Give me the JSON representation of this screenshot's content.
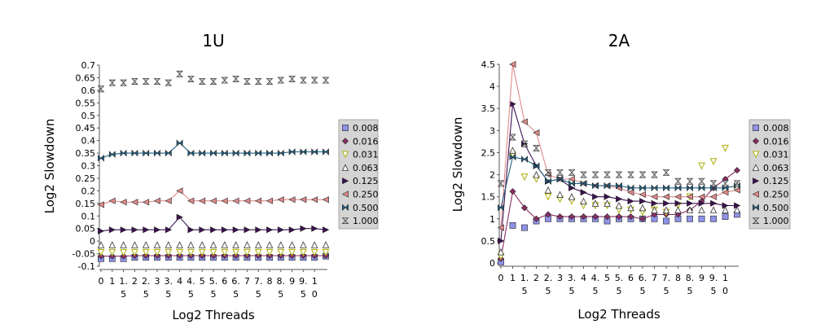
{
  "chart_data": [
    {
      "type": "line",
      "title": "1U",
      "xlabel": "Log2 Threads",
      "ylabel": "Log2 Slowdown",
      "ylim": [
        -0.1,
        0.7
      ],
      "yticks": [
        "-0.1",
        "-0.05",
        "0",
        "0.05",
        "0.1",
        "0.15",
        "0.2",
        "0.25",
        "0.3",
        "0.35",
        "0.4",
        "0.45",
        "0.5",
        "0.55",
        "0.6",
        "0.65",
        "0.7"
      ],
      "xticks": [
        [
          "0"
        ],
        [
          "1"
        ],
        [
          "1.",
          "5"
        ],
        [
          "2"
        ],
        [
          "2.",
          "5"
        ],
        [
          "3"
        ],
        [
          "3.",
          "5"
        ],
        [
          "4"
        ],
        [
          "4.",
          "5"
        ],
        [
          "5"
        ],
        [
          "5.",
          "5"
        ],
        [
          "6"
        ],
        [
          "6.",
          "5"
        ],
        [
          "7"
        ],
        [
          "7.",
          "5"
        ],
        [
          "8"
        ],
        [
          "8.",
          "5"
        ],
        [
          "9"
        ],
        [
          "9.",
          "5"
        ],
        [
          "1",
          "0"
        ]
      ],
      "x": [
        0,
        0.5,
        1,
        1.5,
        2,
        2.5,
        3,
        3.5,
        4,
        4.5,
        5,
        5.5,
        6,
        6.5,
        7,
        7.5,
        8,
        8.5,
        9,
        9.5,
        10
      ],
      "legend_position": "right",
      "series": [
        {
          "name": "0.008",
          "marker": "square",
          "color": "#8f93e8",
          "line": false,
          "values": [
            -0.07,
            -0.07,
            -0.07,
            -0.065,
            -0.065,
            -0.065,
            -0.065,
            -0.065,
            -0.065,
            -0.065,
            -0.065,
            -0.065,
            -0.065,
            -0.065,
            -0.065,
            -0.065,
            -0.065,
            -0.065,
            -0.065,
            -0.065,
            -0.06
          ]
        },
        {
          "name": "0.016",
          "marker": "diamond",
          "color": "#8a2f66",
          "line": true,
          "values": [
            -0.06,
            -0.06,
            -0.06,
            -0.058,
            -0.058,
            -0.058,
            -0.058,
            -0.058,
            -0.058,
            -0.058,
            -0.058,
            -0.058,
            -0.058,
            -0.058,
            -0.058,
            -0.058,
            -0.058,
            -0.058,
            -0.058,
            -0.058,
            -0.058
          ]
        },
        {
          "name": "0.031",
          "marker": "triangle-down",
          "color": "#b5b41a",
          "line": false,
          "values": [
            -0.045,
            -0.045,
            -0.045,
            -0.045,
            -0.045,
            -0.045,
            -0.045,
            -0.045,
            -0.045,
            -0.045,
            -0.045,
            -0.045,
            -0.045,
            -0.045,
            -0.045,
            -0.045,
            -0.045,
            -0.045,
            -0.045,
            -0.045,
            -0.045
          ]
        },
        {
          "name": "0.063",
          "marker": "triangle-up",
          "color": "#6fb89a",
          "line": false,
          "values": [
            -0.015,
            -0.015,
            -0.015,
            -0.015,
            -0.015,
            -0.015,
            -0.015,
            -0.015,
            -0.015,
            -0.015,
            -0.015,
            -0.015,
            -0.015,
            -0.015,
            -0.015,
            -0.015,
            -0.015,
            -0.015,
            -0.015,
            -0.015,
            -0.015
          ]
        },
        {
          "name": "0.125",
          "marker": "triangle-right",
          "color": "#3c1150",
          "line": true,
          "values": [
            0.04,
            0.045,
            0.045,
            0.045,
            0.045,
            0.045,
            0.045,
            0.095,
            0.045,
            0.045,
            0.045,
            0.045,
            0.045,
            0.045,
            0.045,
            0.045,
            0.045,
            0.045,
            0.05,
            0.05,
            0.045
          ]
        },
        {
          "name": "0.250",
          "marker": "triangle-left",
          "color": "#e08a8a",
          "line": true,
          "values": [
            0.145,
            0.16,
            0.155,
            0.155,
            0.155,
            0.16,
            0.16,
            0.2,
            0.16,
            0.16,
            0.16,
            0.16,
            0.16,
            0.16,
            0.16,
            0.16,
            0.165,
            0.165,
            0.165,
            0.165,
            0.165
          ]
        },
        {
          "name": "0.500",
          "marker": "bowtie",
          "color": "#1f5f82",
          "line": true,
          "values": [
            0.33,
            0.345,
            0.35,
            0.35,
            0.35,
            0.35,
            0.35,
            0.39,
            0.35,
            0.35,
            0.35,
            0.35,
            0.35,
            0.35,
            0.35,
            0.35,
            0.35,
            0.355,
            0.355,
            0.355,
            0.355
          ]
        },
        {
          "name": "1.000",
          "marker": "hourglass",
          "color": "#666666",
          "line": false,
          "values": [
            0.605,
            0.63,
            0.63,
            0.635,
            0.635,
            0.635,
            0.63,
            0.665,
            0.645,
            0.635,
            0.635,
            0.64,
            0.645,
            0.635,
            0.635,
            0.635,
            0.64,
            0.645,
            0.64,
            0.64,
            0.64
          ]
        }
      ]
    },
    {
      "type": "line",
      "title": "2A",
      "xlabel": "Log2 Threads",
      "ylabel": "Log2 Slowdown",
      "ylim": [
        0,
        4.5
      ],
      "yticks": [
        "0",
        "0.5",
        "1",
        "1.5",
        "2",
        "2.5",
        "3",
        "3.5",
        "4",
        "4.5"
      ],
      "xticks": [
        [
          "0"
        ],
        [
          "1"
        ],
        [
          "1.",
          "5"
        ],
        [
          "2"
        ],
        [
          "2.",
          "5"
        ],
        [
          "3"
        ],
        [
          "3.",
          "5"
        ],
        [
          "4"
        ],
        [
          "4.",
          "5"
        ],
        [
          "5"
        ],
        [
          "5.",
          "5"
        ],
        [
          "6"
        ],
        [
          "6.",
          "5"
        ],
        [
          "7"
        ],
        [
          "7.",
          "5"
        ],
        [
          "8"
        ],
        [
          "8.",
          "5"
        ],
        [
          "9"
        ],
        [
          "9.",
          "5"
        ],
        [
          "1",
          "0"
        ]
      ],
      "x": [
        0,
        0.5,
        1,
        1.5,
        2,
        2.5,
        3,
        3.5,
        4,
        4.5,
        5,
        5.5,
        6,
        6.5,
        7,
        7.5,
        8,
        8.5,
        9,
        9.5,
        10
      ],
      "legend_position": "right",
      "series": [
        {
          "name": "0.008",
          "marker": "square",
          "color": "#8f93e8",
          "line": false,
          "values": [
            0.02,
            0.85,
            0.8,
            0.95,
            1.0,
            1.0,
            1.0,
            1.0,
            1.0,
            0.95,
            1.0,
            1.0,
            1.0,
            1.0,
            0.95,
            1.0,
            1.0,
            1.0,
            1.0,
            1.05,
            1.1
          ]
        },
        {
          "name": "0.016",
          "marker": "diamond",
          "color": "#8a2f66",
          "line": true,
          "values": [
            0.1,
            1.62,
            1.25,
            1.0,
            1.1,
            1.05,
            1.05,
            1.05,
            1.05,
            1.05,
            1.05,
            1.05,
            1.0,
            1.1,
            1.1,
            1.1,
            1.2,
            1.4,
            1.7,
            1.9,
            2.1
          ]
        },
        {
          "name": "0.031",
          "marker": "triangle-down",
          "color": "#b5b41a",
          "line": false,
          "values": [
            0.15,
            2.45,
            1.95,
            1.9,
            1.5,
            1.45,
            1.4,
            1.3,
            1.3,
            1.3,
            1.2,
            1.2,
            1.15,
            1.2,
            1.15,
            1.3,
            1.5,
            2.2,
            2.3,
            2.6,
            1.7
          ]
        },
        {
          "name": "0.063",
          "marker": "triangle-up",
          "color": "#6fb89a",
          "line": false,
          "values": [
            0.25,
            2.55,
            2.7,
            2.0,
            1.65,
            1.55,
            1.5,
            1.4,
            1.35,
            1.35,
            1.3,
            1.25,
            1.25,
            1.2,
            1.2,
            1.2,
            1.2,
            1.2,
            1.2,
            1.2,
            1.2
          ]
        },
        {
          "name": "0.125",
          "marker": "triangle-right",
          "color": "#3c1150",
          "line": true,
          "values": [
            0.5,
            3.6,
            2.7,
            2.2,
            1.85,
            1.9,
            1.7,
            1.6,
            1.5,
            1.5,
            1.45,
            1.4,
            1.4,
            1.35,
            1.35,
            1.35,
            1.35,
            1.35,
            1.35,
            1.3,
            1.3
          ]
        },
        {
          "name": "0.250",
          "marker": "triangle-left",
          "color": "#e08a8a",
          "line": true,
          "values": [
            0.8,
            4.5,
            3.2,
            2.95,
            2.0,
            1.9,
            1.9,
            1.8,
            1.75,
            1.75,
            1.7,
            1.6,
            1.55,
            1.5,
            1.5,
            1.5,
            1.5,
            1.5,
            1.5,
            1.6,
            1.65
          ]
        },
        {
          "name": "0.500",
          "marker": "bowtie",
          "color": "#1f5f82",
          "line": true,
          "values": [
            1.25,
            2.4,
            2.35,
            2.2,
            1.85,
            1.9,
            1.8,
            1.8,
            1.75,
            1.75,
            1.75,
            1.7,
            1.7,
            1.7,
            1.7,
            1.7,
            1.7,
            1.7,
            1.7,
            1.7,
            1.75
          ]
        },
        {
          "name": "1.000",
          "marker": "hourglass",
          "color": "#666666",
          "line": false,
          "values": [
            1.8,
            2.85,
            2.7,
            2.6,
            2.05,
            2.05,
            2.05,
            2.0,
            2.0,
            2.0,
            2.0,
            2.0,
            2.0,
            2.0,
            2.05,
            1.85,
            1.85,
            1.85,
            1.8,
            1.8,
            1.8
          ]
        }
      ]
    }
  ]
}
